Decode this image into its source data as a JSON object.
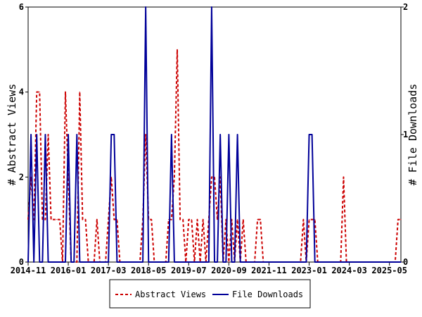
{
  "chart_data": {
    "type": "line",
    "x_tick_labels": [
      "2014-11",
      "2016-01",
      "2017-03",
      "2018-05",
      "2019-07",
      "2020-09",
      "2021-11",
      "2023-01",
      "2024-03",
      "2025-05"
    ],
    "x_range": [
      "2014-11",
      "2025-09"
    ],
    "left_axis": {
      "label": "# Abstract Views",
      "ylim": [
        0,
        6
      ],
      "ticks": [
        "0",
        "2",
        "4",
        "6"
      ]
    },
    "right_axis": {
      "label": "# File Downloads",
      "ylim": [
        0,
        2
      ],
      "ticks": [
        "0",
        "1",
        "2"
      ]
    },
    "legend_position": "bottom-center",
    "series": [
      {
        "name": "Abstract Views",
        "axis": "left",
        "color": "#cc0000",
        "dash": "dashed",
        "points": [
          [
            "2014-11",
            1
          ],
          [
            "2014-12",
            2
          ],
          [
            "2015-01",
            1
          ],
          [
            "2015-02",
            4
          ],
          [
            "2015-03",
            4
          ],
          [
            "2015-04",
            1
          ],
          [
            "2015-05",
            1
          ],
          [
            "2015-06",
            3
          ],
          [
            "2015-07",
            1
          ],
          [
            "2015-08",
            1
          ],
          [
            "2015-09",
            1
          ],
          [
            "2015-10",
            1
          ],
          [
            "2015-11",
            0
          ],
          [
            "2015-12",
            4
          ],
          [
            "2016-01",
            2
          ],
          [
            "2016-02",
            0
          ],
          [
            "2016-03",
            0
          ],
          [
            "2016-04",
            0
          ],
          [
            "2016-05",
            4
          ],
          [
            "2016-06",
            1
          ],
          [
            "2016-07",
            1
          ],
          [
            "2016-08",
            0
          ],
          [
            "2016-09",
            0
          ],
          [
            "2016-10",
            0
          ],
          [
            "2016-11",
            1
          ],
          [
            "2016-12",
            0
          ],
          [
            "2017-01",
            0
          ],
          [
            "2017-02",
            0
          ],
          [
            "2017-03",
            1
          ],
          [
            "2017-04",
            2
          ],
          [
            "2017-05",
            1
          ],
          [
            "2017-06",
            1
          ],
          [
            "2017-07",
            0
          ],
          [
            "2017-08",
            0
          ],
          [
            "2017-09",
            0
          ],
          [
            "2017-10",
            0
          ],
          [
            "2017-11",
            0
          ],
          [
            "2017-12",
            0
          ],
          [
            "2018-01",
            0
          ],
          [
            "2018-02",
            0
          ],
          [
            "2018-03",
            1
          ],
          [
            "2018-04",
            3
          ],
          [
            "2018-05",
            1
          ],
          [
            "2018-06",
            1
          ],
          [
            "2018-07",
            0
          ],
          [
            "2018-08",
            0
          ],
          [
            "2018-09",
            0
          ],
          [
            "2018-10",
            0
          ],
          [
            "2018-11",
            0
          ],
          [
            "2018-12",
            1
          ],
          [
            "2019-01",
            1
          ],
          [
            "2019-02",
            2
          ],
          [
            "2019-03",
            5
          ],
          [
            "2019-04",
            1
          ],
          [
            "2019-05",
            1
          ],
          [
            "2019-06",
            0
          ],
          [
            "2019-07",
            1
          ],
          [
            "2019-08",
            1
          ],
          [
            "2019-09",
            0
          ],
          [
            "2019-10",
            1
          ],
          [
            "2019-11",
            0
          ],
          [
            "2019-12",
            1
          ],
          [
            "2020-01",
            0
          ],
          [
            "2020-02",
            1
          ],
          [
            "2020-03",
            2
          ],
          [
            "2020-04",
            2
          ],
          [
            "2020-05",
            1
          ],
          [
            "2020-06",
            2
          ],
          [
            "2020-07",
            0
          ],
          [
            "2020-08",
            1
          ],
          [
            "2020-09",
            0
          ],
          [
            "2020-10",
            1
          ],
          [
            "2020-11",
            0
          ],
          [
            "2020-12",
            1
          ],
          [
            "2021-01",
            0
          ],
          [
            "2021-02",
            1
          ],
          [
            "2021-03",
            0
          ],
          [
            "2021-04",
            0
          ],
          [
            "2021-05",
            0
          ],
          [
            "2021-06",
            0
          ],
          [
            "2021-07",
            1
          ],
          [
            "2021-08",
            1
          ],
          [
            "2021-09",
            0
          ],
          [
            "2021-10",
            0
          ],
          [
            "2021-11",
            0
          ],
          [
            "2021-12",
            0
          ],
          [
            "2022-01",
            0
          ],
          [
            "2022-02",
            0
          ],
          [
            "2022-03",
            0
          ],
          [
            "2022-04",
            0
          ],
          [
            "2022-05",
            0
          ],
          [
            "2022-06",
            0
          ],
          [
            "2022-07",
            0
          ],
          [
            "2022-08",
            0
          ],
          [
            "2022-09",
            0
          ],
          [
            "2022-10",
            0
          ],
          [
            "2022-11",
            1
          ],
          [
            "2022-12",
            0
          ],
          [
            "2023-01",
            1
          ],
          [
            "2023-02",
            1
          ],
          [
            "2023-03",
            1
          ],
          [
            "2023-04",
            0
          ],
          [
            "2023-05",
            0
          ],
          [
            "2023-06",
            0
          ],
          [
            "2023-07",
            0
          ],
          [
            "2023-08",
            0
          ],
          [
            "2023-09",
            0
          ],
          [
            "2023-10",
            0
          ],
          [
            "2023-11",
            0
          ],
          [
            "2023-12",
            0
          ],
          [
            "2024-01",
            2
          ],
          [
            "2024-02",
            0
          ],
          [
            "2024-03",
            0
          ],
          [
            "2024-04",
            0
          ],
          [
            "2024-05",
            0
          ],
          [
            "2024-06",
            0
          ],
          [
            "2024-07",
            0
          ],
          [
            "2024-08",
            0
          ],
          [
            "2024-09",
            0
          ],
          [
            "2024-10",
            0
          ],
          [
            "2024-11",
            0
          ],
          [
            "2024-12",
            0
          ],
          [
            "2025-01",
            0
          ],
          [
            "2025-02",
            0
          ],
          [
            "2025-03",
            0
          ],
          [
            "2025-04",
            0
          ],
          [
            "2025-05",
            0
          ],
          [
            "2025-06",
            0
          ],
          [
            "2025-07",
            0
          ],
          [
            "2025-08",
            1
          ],
          [
            "2025-09",
            1
          ]
        ]
      },
      {
        "name": "File Downloads",
        "axis": "right",
        "color": "#000099",
        "dash": "solid",
        "points": [
          [
            "2014-11",
            0
          ],
          [
            "2014-12",
            1
          ],
          [
            "2015-01",
            0
          ],
          [
            "2015-02",
            1
          ],
          [
            "2015-03",
            0
          ],
          [
            "2015-04",
            0
          ],
          [
            "2015-05",
            1
          ],
          [
            "2015-06",
            0
          ],
          [
            "2015-07",
            0
          ],
          [
            "2015-08",
            0
          ],
          [
            "2015-09",
            0
          ],
          [
            "2015-10",
            0
          ],
          [
            "2015-11",
            0
          ],
          [
            "2015-12",
            0
          ],
          [
            "2016-01",
            1
          ],
          [
            "2016-02",
            0
          ],
          [
            "2016-03",
            0
          ],
          [
            "2016-04",
            1
          ],
          [
            "2016-05",
            0
          ],
          [
            "2016-06",
            0
          ],
          [
            "2016-07",
            0
          ],
          [
            "2016-08",
            0
          ],
          [
            "2016-09",
            0
          ],
          [
            "2016-10",
            0
          ],
          [
            "2016-11",
            0
          ],
          [
            "2016-12",
            0
          ],
          [
            "2017-01",
            0
          ],
          [
            "2017-02",
            0
          ],
          [
            "2017-03",
            0
          ],
          [
            "2017-04",
            1
          ],
          [
            "2017-05",
            1
          ],
          [
            "2017-06",
            0
          ],
          [
            "2017-07",
            0
          ],
          [
            "2017-08",
            0
          ],
          [
            "2017-09",
            0
          ],
          [
            "2017-10",
            0
          ],
          [
            "2017-11",
            0
          ],
          [
            "2017-12",
            0
          ],
          [
            "2018-01",
            0
          ],
          [
            "2018-02",
            0
          ],
          [
            "2018-03",
            0
          ],
          [
            "2018-04",
            2
          ],
          [
            "2018-05",
            0
          ],
          [
            "2018-06",
            0
          ],
          [
            "2018-07",
            0
          ],
          [
            "2018-08",
            0
          ],
          [
            "2018-09",
            0
          ],
          [
            "2018-10",
            0
          ],
          [
            "2018-11",
            0
          ],
          [
            "2018-12",
            0
          ],
          [
            "2019-01",
            1
          ],
          [
            "2019-02",
            0
          ],
          [
            "2019-03",
            0
          ],
          [
            "2019-04",
            0
          ],
          [
            "2019-05",
            0
          ],
          [
            "2019-06",
            0
          ],
          [
            "2019-07",
            0
          ],
          [
            "2019-08",
            0
          ],
          [
            "2019-09",
            0
          ],
          [
            "2019-10",
            0
          ],
          [
            "2019-11",
            0
          ],
          [
            "2019-12",
            0
          ],
          [
            "2020-01",
            0
          ],
          [
            "2020-02",
            0
          ],
          [
            "2020-03",
            2
          ],
          [
            "2020-04",
            0
          ],
          [
            "2020-05",
            0
          ],
          [
            "2020-06",
            1
          ],
          [
            "2020-07",
            0
          ],
          [
            "2020-08",
            0
          ],
          [
            "2020-09",
            1
          ],
          [
            "2020-10",
            0
          ],
          [
            "2020-11",
            0
          ],
          [
            "2020-12",
            1
          ],
          [
            "2021-01",
            0
          ],
          [
            "2021-02",
            0
          ],
          [
            "2021-03",
            0
          ],
          [
            "2021-04",
            0
          ],
          [
            "2021-05",
            0
          ],
          [
            "2021-06",
            0
          ],
          [
            "2021-07",
            0
          ],
          [
            "2021-08",
            0
          ],
          [
            "2021-09",
            0
          ],
          [
            "2021-10",
            0
          ],
          [
            "2021-11",
            0
          ],
          [
            "2021-12",
            0
          ],
          [
            "2022-01",
            0
          ],
          [
            "2022-02",
            0
          ],
          [
            "2022-03",
            0
          ],
          [
            "2022-04",
            0
          ],
          [
            "2022-05",
            0
          ],
          [
            "2022-06",
            0
          ],
          [
            "2022-07",
            0
          ],
          [
            "2022-08",
            0
          ],
          [
            "2022-09",
            0
          ],
          [
            "2022-10",
            0
          ],
          [
            "2022-11",
            0
          ],
          [
            "2022-12",
            0
          ],
          [
            "2023-01",
            1
          ],
          [
            "2023-02",
            1
          ],
          [
            "2023-03",
            0
          ],
          [
            "2023-04",
            0
          ],
          [
            "2023-05",
            0
          ],
          [
            "2023-06",
            0
          ],
          [
            "2023-07",
            0
          ],
          [
            "2023-08",
            0
          ],
          [
            "2023-09",
            0
          ],
          [
            "2023-10",
            0
          ],
          [
            "2023-11",
            0
          ],
          [
            "2023-12",
            0
          ],
          [
            "2024-01",
            0
          ],
          [
            "2024-02",
            0
          ],
          [
            "2024-03",
            0
          ],
          [
            "2024-04",
            0
          ],
          [
            "2024-05",
            0
          ],
          [
            "2024-06",
            0
          ],
          [
            "2024-07",
            0
          ],
          [
            "2024-08",
            0
          ],
          [
            "2024-09",
            0
          ],
          [
            "2024-10",
            0
          ],
          [
            "2024-11",
            0
          ],
          [
            "2024-12",
            0
          ],
          [
            "2025-01",
            0
          ],
          [
            "2025-02",
            0
          ],
          [
            "2025-03",
            0
          ],
          [
            "2025-04",
            0
          ],
          [
            "2025-05",
            0
          ],
          [
            "2025-06",
            0
          ],
          [
            "2025-07",
            0
          ],
          [
            "2025-08",
            0
          ],
          [
            "2025-09",
            0
          ]
        ]
      }
    ]
  }
}
